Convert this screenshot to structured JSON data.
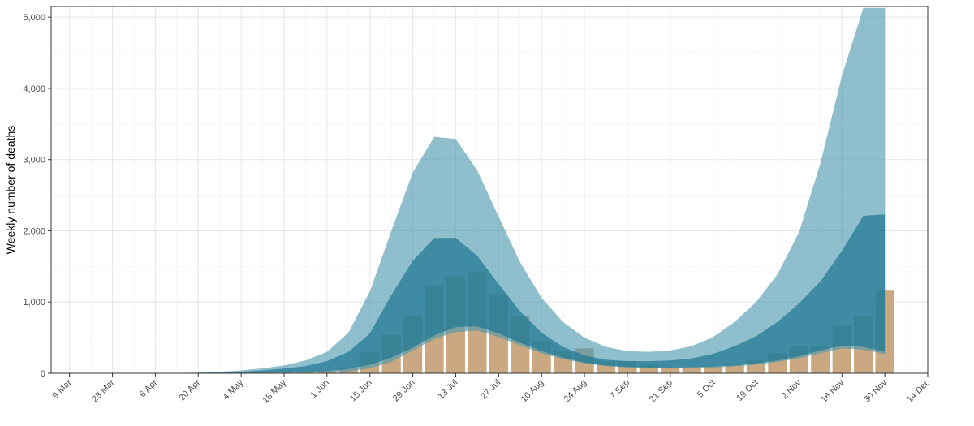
{
  "chart_data": {
    "type": "area",
    "title": "",
    "xlabel": "",
    "ylabel": "Weekly number of deaths",
    "x_ticks": [
      "9 Mar",
      "23 Mar",
      "6 Apr",
      "20 Apr",
      "4 May",
      "18 May",
      "1 Jun",
      "15 Jun",
      "29 Jun",
      "13 Jul",
      "27 Jul",
      "10 Aug",
      "24 Aug",
      "7 Sep",
      "21 Sep",
      "5 Oct",
      "19 Oct",
      "2 Nov",
      "16 Nov",
      "30 Nov",
      "14 Dec"
    ],
    "xlim": [
      "2020-03-03",
      "2020-12-14"
    ],
    "ylim": [
      0,
      5150
    ],
    "y_ticks": [
      0,
      1000,
      2000,
      3000,
      4000,
      5000
    ],
    "y_tick_labels": [
      "0",
      "1,000",
      "2,000",
      "3,000",
      "4,000",
      "5,000"
    ],
    "grid": true,
    "legend": "none",
    "weeks": [
      "2020-03-09",
      "2020-03-16",
      "2020-03-23",
      "2020-03-30",
      "2020-04-06",
      "2020-04-13",
      "2020-04-20",
      "2020-04-27",
      "2020-05-04",
      "2020-05-11",
      "2020-05-18",
      "2020-05-25",
      "2020-06-01",
      "2020-06-08",
      "2020-06-15",
      "2020-06-22",
      "2020-06-29",
      "2020-07-06",
      "2020-07-13",
      "2020-07-20",
      "2020-07-27",
      "2020-08-03",
      "2020-08-10",
      "2020-08-17",
      "2020-08-24",
      "2020-08-31",
      "2020-09-07",
      "2020-09-14",
      "2020-09-21",
      "2020-09-28",
      "2020-10-05",
      "2020-10-12",
      "2020-10-19",
      "2020-10-26",
      "2020-11-02",
      "2020-11-09",
      "2020-11-16",
      "2020-11-23",
      "2020-11-30"
    ],
    "observed_deaths": [
      0,
      0,
      0,
      0,
      0,
      0,
      2,
      5,
      8,
      12,
      18,
      25,
      35,
      80,
      300,
      540,
      800,
      1230,
      1360,
      1430,
      1110,
      800,
      450,
      300,
      350,
      160,
      170,
      120,
      80,
      90,
      100,
      130,
      180,
      280,
      380,
      390,
      660,
      800,
      1160
    ],
    "bands": [
      {
        "lower": [
          0,
          0,
          0,
          0,
          0,
          1,
          2,
          4,
          6,
          9,
          13,
          20,
          30,
          60,
          120,
          220,
          360,
          530,
          650,
          660,
          560,
          430,
          310,
          220,
          150,
          110,
          90,
          80,
          80,
          85,
          95,
          110,
          140,
          180,
          240,
          320,
          390,
          370,
          300
        ],
        "upper": [
          0,
          0,
          0,
          0,
          1,
          3,
          6,
          12,
          22,
          40,
          65,
          100,
          170,
          300,
          560,
          1100,
          1580,
          1900,
          1900,
          1650,
          1250,
          870,
          570,
          370,
          250,
          190,
          170,
          170,
          180,
          210,
          270,
          380,
          520,
          720,
          980,
          1290,
          1720,
          2210,
          2230
        ]
      },
      {
        "lower": [
          0,
          0,
          0,
          0,
          0,
          0,
          1,
          2,
          3,
          4,
          6,
          9,
          13,
          25,
          70,
          160,
          320,
          480,
          580,
          600,
          510,
          390,
          280,
          200,
          140,
          100,
          80,
          70,
          70,
          75,
          80,
          95,
          120,
          160,
          210,
          280,
          350,
          330,
          270
        ],
        "upper": [
          0,
          0,
          0,
          0,
          1,
          4,
          10,
          20,
          40,
          70,
          110,
          180,
          300,
          570,
          1150,
          2000,
          2820,
          3320,
          3290,
          2850,
          2200,
          1560,
          1060,
          720,
          500,
          370,
          310,
          300,
          320,
          380,
          510,
          720,
          1000,
          1390,
          1980,
          2950,
          4180,
          5130,
          5130
        ]
      }
    ],
    "colors": {
      "observed_bar": "#c9a882",
      "outer_band": "#4a98ae",
      "inner_band": "#1f7793"
    }
  }
}
